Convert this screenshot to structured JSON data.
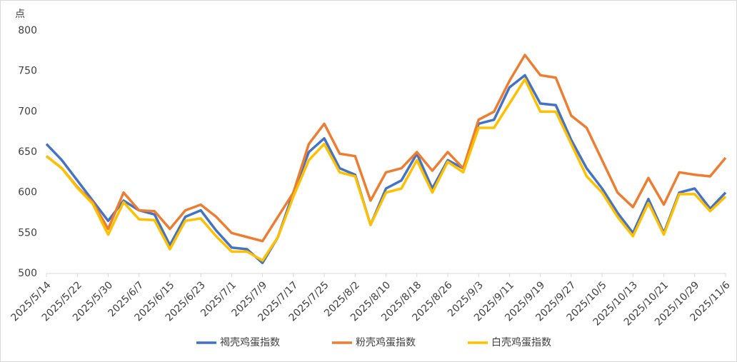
{
  "chart_data": {
    "type": "line",
    "y_label": "点",
    "categories": [
      "2025/5/14",
      null,
      "2025/5/22",
      null,
      "2025/5/30",
      null,
      "2025/6/7",
      null,
      "2025/6/15",
      null,
      "2025/6/23",
      null,
      "2025/7/1",
      null,
      "2025/7/9",
      null,
      "2025/7/17",
      null,
      "2025/7/25",
      null,
      "2025/8/2",
      null,
      "2025/8/10",
      null,
      "2025/8/18",
      null,
      "2025/8/26",
      null,
      "2025/9/3",
      null,
      "2025/9/11",
      null,
      "2025/9/19",
      null,
      "2025/9/27",
      null,
      "2025/10/5",
      null,
      "2025/10/13",
      null,
      "2025/10/21",
      null,
      "2025/10/29",
      null,
      "2025/11/6"
    ],
    "series": [
      {
        "name": "褐壳鸡蛋指数",
        "color": "#4472c4",
        "values": [
          660,
          640,
          615,
          590,
          565,
          590,
          578,
          573,
          535,
          570,
          578,
          553,
          532,
          530,
          513,
          545,
          600,
          650,
          667,
          630,
          622,
          560,
          605,
          615,
          648,
          605,
          640,
          630,
          685,
          690,
          730,
          745,
          710,
          708,
          665,
          630,
          605,
          575,
          550,
          592,
          550,
          600,
          605,
          580,
          600
        ]
      },
      {
        "name": "粉壳鸡蛋指数",
        "color": "#ed7d31",
        "values": [
          645,
          630,
          607,
          588,
          555,
          600,
          578,
          577,
          555,
          578,
          585,
          570,
          550,
          545,
          540,
          570,
          600,
          660,
          685,
          648,
          645,
          590,
          625,
          630,
          650,
          627,
          650,
          630,
          690,
          700,
          738,
          770,
          745,
          742,
          695,
          680,
          640,
          600,
          582,
          618,
          585,
          625,
          622,
          620,
          643
        ]
      },
      {
        "name": "白壳鸡蛋指数",
        "color": "#ffc000",
        "values": [
          645,
          630,
          606,
          586,
          548,
          588,
          567,
          566,
          530,
          565,
          568,
          546,
          527,
          527,
          516,
          545,
          595,
          640,
          660,
          625,
          620,
          560,
          600,
          605,
          640,
          600,
          638,
          625,
          680,
          680,
          710,
          740,
          700,
          700,
          660,
          620,
          600,
          570,
          546,
          587,
          548,
          598,
          598,
          577,
          595
        ]
      }
    ],
    "ylim": [
      500,
      800
    ],
    "yticks": [
      500,
      550,
      600,
      650,
      700,
      750,
      800
    ],
    "legend": "bottom",
    "grid": false
  }
}
